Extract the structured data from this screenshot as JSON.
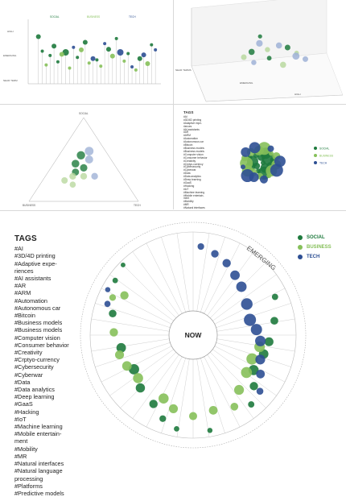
{
  "colors": {
    "social": "#1e7a3d",
    "business": "#86c05a",
    "tech": "#2d4f93",
    "business_light": "#b9d89f",
    "tech_light": "#9fb2d6",
    "grid": "#cccccc"
  },
  "lollipop": {
    "legend": [
      "SOCIAL",
      "BUSINESS",
      "TECH"
    ],
    "y_labels": [
      "HIGH",
      "EMERGING",
      "NEAR TERM"
    ]
  },
  "scatter3d": {
    "axis_labels": [
      "NEAR TERMS",
      "EMERGING",
      "HIGH"
    ]
  },
  "ternary": {
    "vertex_labels": [
      "SOCIAL",
      "BUSINESS",
      "TECH"
    ]
  },
  "legend": {
    "items": [
      {
        "label": "SOCIAL",
        "color": "#1e7a3d"
      },
      {
        "label": "BUSINESS",
        "color": "#86c05a"
      },
      {
        "label": "TECH",
        "color": "#2d4f93"
      }
    ]
  },
  "radial": {
    "center_label": "NOW",
    "arc_label": "EMERGING"
  },
  "tags": {
    "title": "TAGS",
    "small_items": [
      "#AI",
      "#3D/4D printing",
      "#Adaptive expe-",
      "riences",
      "#AI assistants",
      "#AR",
      "#ARM",
      "#Automation",
      "#Autonomous car",
      "#Bitcoin",
      "#Business models",
      "#Business models",
      "#Computer vision",
      "#Consumer behavior",
      "#Creativity",
      "#Crptyo-currency",
      "#Cybersecurity",
      "#Cyberwar",
      "#Data",
      "#Data analytics",
      "#Deep learning",
      "#GaaS",
      "#Hacking",
      "#IoT",
      "#Machine learning",
      "#Mobile entertain-",
      "ment",
      "#Mobility",
      "#MR",
      "#Natural interfaces"
    ],
    "items": [
      "#AI",
      "#3D/4D printing",
      "#Adaptive expe-",
      "riences",
      "#AI assistants",
      "#AR",
      "#ARM",
      "#Automation",
      "#Autonomous car",
      "#Bitcoin",
      "#Business models",
      "#Business models",
      "#Computer vision",
      "#Consumer behavior",
      "#Creativity",
      "#Crptyo-currency",
      "#Cybersecurity",
      "#Cyberwar",
      "#Data",
      "#Data analytics",
      "#Deep learning",
      "#GaaS",
      "#Hacking",
      "#IoT",
      "#Machine learning",
      "#Mobile entertain-",
      "ment",
      "#Mobility",
      "#MR",
      "#Natural interfaces",
      "#Natural language",
      "processing",
      "#Platforms",
      "#Predictive models"
    ]
  },
  "chart_data": [
    {
      "type": "scatter",
      "subtype": "lollipop",
      "legend": [
        "SOCIAL",
        "BUSINESS",
        "TECH"
      ],
      "y_ticks": [
        "HIGH",
        "EMERGING",
        "NEAR TERM"
      ],
      "series": [
        {
          "name": "SOCIAL",
          "x": [
            2,
            3,
            5,
            6,
            7,
            9,
            12,
            14,
            17,
            20,
            22,
            25,
            28,
            31
          ],
          "y": [
            0.75,
            0.52,
            0.45,
            0.6,
            0.35,
            0.5,
            0.42,
            0.66,
            0.38,
            0.55,
            0.72,
            0.48,
            0.4,
            0.62
          ],
          "size": [
            3,
            2,
            2,
            3,
            2,
            4,
            2,
            3,
            2,
            3,
            2,
            2,
            3,
            2
          ]
        },
        {
          "name": "BUSINESS",
          "x": [
            4,
            8,
            10,
            13,
            15,
            18,
            21,
            24,
            27,
            30
          ],
          "y": [
            0.3,
            0.47,
            0.25,
            0.54,
            0.33,
            0.28,
            0.44,
            0.36,
            0.22,
            0.32
          ],
          "size": [
            2,
            3,
            2,
            3,
            2,
            2,
            3,
            2,
            2,
            3
          ]
        },
        {
          "name": "TECH",
          "x": [
            11,
            16,
            19,
            23,
            26,
            29,
            32
          ],
          "y": [
            0.58,
            0.4,
            0.64,
            0.5,
            0.27,
            0.46,
            0.54
          ],
          "size": [
            2,
            3,
            2,
            4,
            2,
            3,
            2
          ]
        }
      ]
    },
    {
      "type": "scatter",
      "subtype": "3d",
      "axis_labels": [
        "NEAR TERMS",
        "EMERGING",
        "HIGH"
      ],
      "series": [
        {
          "name": "SOCIAL",
          "points": [
            [
              0.35,
              0.55,
              0.6
            ],
            [
              0.5,
              0.4,
              0.3
            ],
            [
              0.62,
              0.6,
              0.5
            ],
            [
              0.44,
              0.72,
              0.2
            ]
          ]
        },
        {
          "name": "BUSINESS",
          "points": [
            [
              0.3,
              0.45,
              0.5
            ],
            [
              0.48,
              0.55,
              0.4
            ],
            [
              0.58,
              0.35,
              0.6
            ],
            [
              0.7,
              0.48,
              0.3
            ]
          ]
        },
        {
          "name": "TECH",
          "points": [
            [
              0.4,
              0.7,
              0.7
            ],
            [
              0.55,
              0.65,
              0.6
            ],
            [
              0.66,
              0.52,
              0.8
            ],
            [
              0.75,
              0.42,
              0.5
            ],
            [
              0.38,
              0.35,
              0.4
            ]
          ]
        }
      ]
    },
    {
      "type": "scatter",
      "subtype": "ternary",
      "vertices": [
        "SOCIAL",
        "BUSINESS",
        "TECH"
      ],
      "series": [
        {
          "name": "SOCIAL",
          "points": [
            [
              0.55,
              0.25,
              0.2
            ],
            [
              0.45,
              0.35,
              0.2
            ],
            [
              0.4,
              0.3,
              0.3
            ],
            [
              0.35,
              0.4,
              0.25
            ]
          ]
        },
        {
          "name": "BUSINESS",
          "points": [
            [
              0.25,
              0.55,
              0.2
            ],
            [
              0.3,
              0.45,
              0.25
            ],
            [
              0.2,
              0.5,
              0.3
            ],
            [
              0.3,
              0.35,
              0.35
            ]
          ]
        },
        {
          "name": "TECH",
          "points": [
            [
              0.6,
              0.15,
              0.25
            ],
            [
              0.5,
              0.2,
              0.3
            ],
            [
              0.3,
              0.25,
              0.45
            ]
          ]
        }
      ]
    },
    {
      "type": "scatter",
      "subtype": "bubble-cluster",
      "series": [
        {
          "name": "SOCIAL",
          "count": 14
        },
        {
          "name": "BUSINESS",
          "count": 13
        },
        {
          "name": "TECH",
          "count": 9
        }
      ]
    },
    {
      "type": "scatter",
      "subtype": "radial",
      "center_label": "NOW",
      "outer_label": "EMERGING",
      "spokes": 40,
      "series": [
        {
          "name": "SOCIAL",
          "points": [
            [
              315,
              0.95
            ],
            [
              305,
              0.9
            ],
            [
              285,
              0.75
            ],
            [
              260,
              0.62
            ],
            [
              240,
              0.56
            ],
            [
              225,
              0.64
            ],
            [
              210,
              0.7
            ],
            [
              200,
              0.82
            ],
            [
              190,
              0.9
            ],
            [
              170,
              0.92
            ],
            [
              140,
              0.84
            ],
            [
              130,
              0.7
            ],
            [
              120,
              0.58
            ],
            [
              105,
              0.62
            ],
            [
              95,
              0.66
            ],
            [
              80,
              0.74
            ],
            [
              65,
              0.84
            ]
          ]
        },
        {
          "name": "BUSINESS",
          "points": [
            [
              300,
              0.7
            ],
            [
              295,
              0.82
            ],
            [
              272,
              0.7
            ],
            [
              255,
              0.66
            ],
            [
              245,
              0.62
            ],
            [
              232,
              0.58
            ],
            [
              205,
              0.58
            ],
            [
              195,
              0.66
            ],
            [
              180,
              0.72
            ],
            [
              165,
              0.68
            ],
            [
              150,
              0.74
            ],
            [
              140,
              0.6
            ],
            [
              125,
              0.52
            ],
            [
              112,
              0.5
            ],
            [
              100,
              0.55
            ]
          ]
        },
        {
          "name": "TECH",
          "points": [
            [
              5,
              0.82
            ],
            [
              15,
              0.76
            ],
            [
              25,
              0.7
            ],
            [
              35,
              0.62
            ],
            [
              45,
              0.56
            ],
            [
              60,
              0.48
            ],
            [
              75,
              0.44
            ],
            [
              85,
              0.5
            ],
            [
              95,
              0.55
            ],
            [
              110,
              0.6
            ],
            [
              120,
              0.68
            ],
            [
              130,
              0.8
            ],
            [
              290,
              0.85
            ],
            [
              298,
              0.92
            ]
          ]
        }
      ]
    }
  ]
}
